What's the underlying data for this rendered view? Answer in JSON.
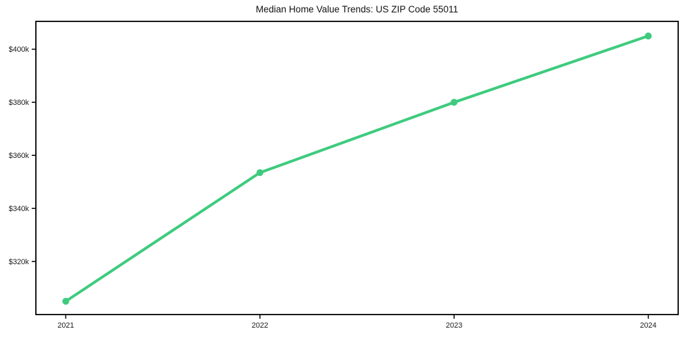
{
  "chart_data": {
    "type": "line",
    "title": "Median Home Value Trends: US ZIP Code 55011",
    "xlabel": "",
    "ylabel": "",
    "x": [
      2021,
      2022,
      2023,
      2024
    ],
    "categories": [
      "2021",
      "2022",
      "2023",
      "2024"
    ],
    "series": [
      {
        "name": "Median Home Value",
        "values": [
          305000,
          353500,
          380000,
          405000
        ]
      }
    ],
    "y_ticks": [
      320000,
      340000,
      360000,
      380000,
      400000
    ],
    "y_tick_labels": [
      "$320k",
      "$340k",
      "$360k",
      "$380k",
      "$400k"
    ],
    "xlim": [
      2020.846,
      2024.154
    ],
    "ylim": [
      300000,
      410500
    ],
    "grid": false,
    "legend": "none",
    "line_color": "#3ecb7e",
    "marker": "circle",
    "marker_color": "#3ecb7e",
    "axis_color": "#000000",
    "tick_label_color": "#1a1a1a",
    "background": "#ffffff"
  }
}
